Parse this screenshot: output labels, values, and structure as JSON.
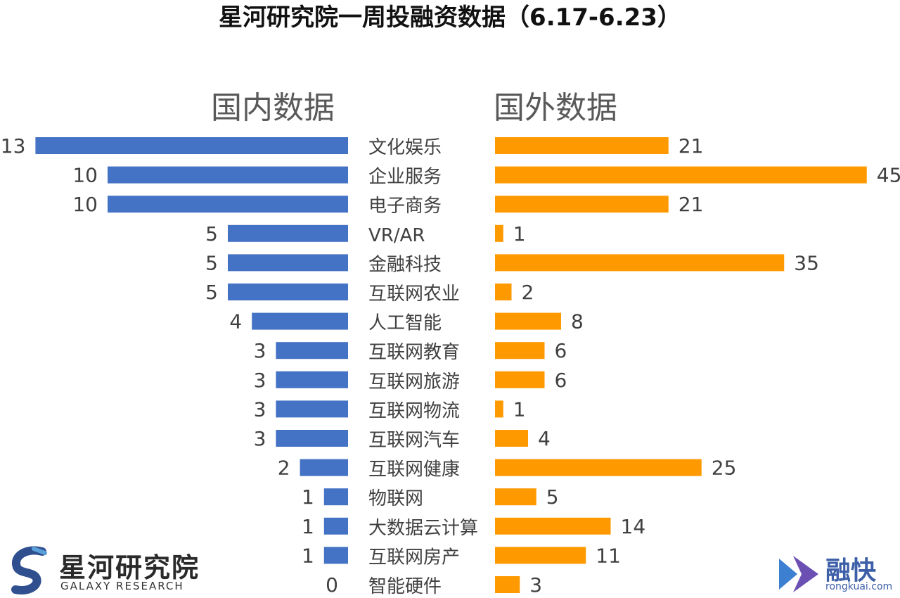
{
  "title": "星河研究院一周投融资数据（6.17-6.23）",
  "left_header": "国内数据",
  "right_header": "国外数据",
  "colors": {
    "domestic": "#4472C4",
    "foreign": "#FF9900"
  },
  "chart_data": {
    "type": "bar",
    "orientation": "horizontal-butterfly",
    "title": "星河研究院一周投融资数据（6.17-6.23）",
    "categories": [
      "文化娱乐",
      "企业服务",
      "电子商务",
      "VR/AR",
      "金融科技",
      "互联网农业",
      "人工智能",
      "互联网教育",
      "互联网旅游",
      "互联网物流",
      "互联网汽车",
      "互联网健康",
      "物联网",
      "大数据云计算",
      "互联网房产",
      "智能硬件"
    ],
    "series": [
      {
        "name": "国内数据",
        "values": [
          13,
          10,
          10,
          5,
          5,
          5,
          4,
          3,
          3,
          3,
          3,
          2,
          1,
          1,
          1,
          0
        ]
      },
      {
        "name": "国外数据",
        "values": [
          21,
          45,
          21,
          1,
          35,
          2,
          8,
          6,
          6,
          1,
          4,
          25,
          5,
          14,
          11,
          3
        ]
      }
    ]
  },
  "logos": {
    "left": {
      "name": "星河研究院",
      "sub": "GALAXY RESEARCH"
    },
    "right": {
      "name": "融快",
      "url": "rongkuai.com"
    }
  }
}
